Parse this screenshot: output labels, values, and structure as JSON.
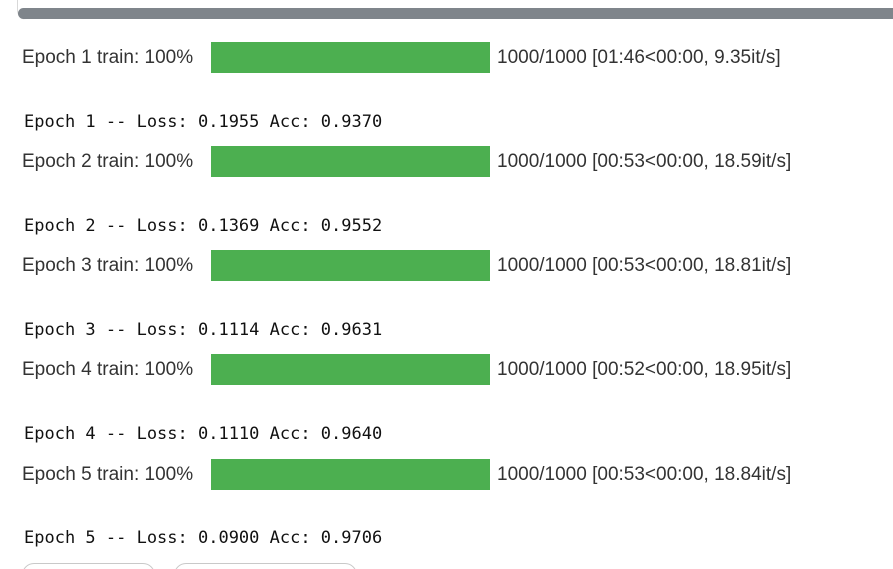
{
  "epochs": [
    {
      "progress": {
        "label": "Epoch 1 train: 100%",
        "fraction": 1.0,
        "stats": "1000/1000 [01:46<00:00, 9.35it/s]"
      },
      "result": "Epoch 1 -- Loss: 0.1955 Acc: 0.9370"
    },
    {
      "progress": {
        "label": "Epoch 2 train: 100%",
        "fraction": 1.0,
        "stats": "1000/1000 [00:53<00:00, 18.59it/s]"
      },
      "result": "Epoch 2 -- Loss: 0.1369 Acc: 0.9552"
    },
    {
      "progress": {
        "label": "Epoch 3 train: 100%",
        "fraction": 1.0,
        "stats": "1000/1000 [00:53<00:00, 18.81it/s]"
      },
      "result": "Epoch 3 -- Loss: 0.1114 Acc: 0.9631"
    },
    {
      "progress": {
        "label": "Epoch 4 train: 100%",
        "fraction": 1.0,
        "stats": "1000/1000 [00:52<00:00, 18.95it/s]"
      },
      "result": "Epoch 4 -- Loss: 0.1110 Acc: 0.9640"
    },
    {
      "progress": {
        "label": "Epoch 5 train: 100%",
        "fraction": 1.0,
        "stats": "1000/1000 [00:53<00:00, 18.84it/s]"
      },
      "result": "Epoch 5 -- Loss: 0.0900 Acc: 0.9706"
    }
  ],
  "colors": {
    "progress_bar_fill": "#4caf50",
    "scrollbar_thumb": "#7f858b"
  }
}
